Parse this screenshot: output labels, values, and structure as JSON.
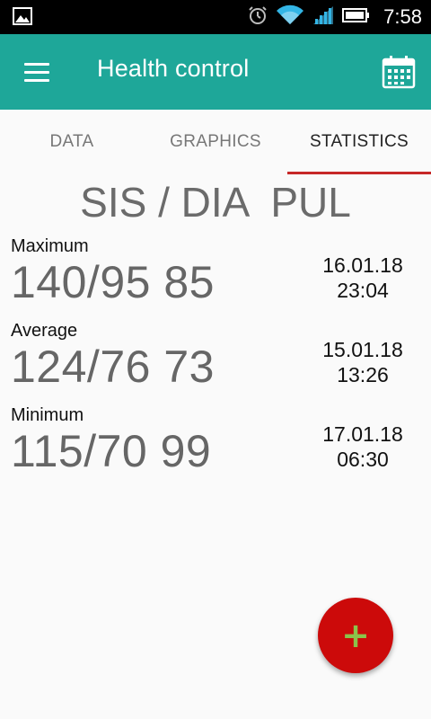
{
  "status_bar": {
    "time": "7:58",
    "icons": [
      "image-icon",
      "alarm-icon",
      "wifi-icon",
      "signal-icon",
      "battery-icon"
    ]
  },
  "app_bar": {
    "title": "Health control",
    "menu_icon": "menu-icon",
    "calendar_icon": "calendar-icon",
    "color": "#1ea799"
  },
  "tabs": [
    {
      "label": "DATA",
      "active": false
    },
    {
      "label": "GRAPHICS",
      "active": false
    },
    {
      "label": "STATISTICS",
      "active": true
    }
  ],
  "statistics": {
    "heading": "SIS / DIA  PUL",
    "rows": [
      {
        "label": "Maximum",
        "value": "140/95 85",
        "date": "16.01.18",
        "time": "23:04"
      },
      {
        "label": "Average",
        "value": "124/76 73",
        "date": "15.01.18",
        "time": "13:26"
      },
      {
        "label": "Minimum",
        "value": "115/70 99",
        "date": "17.01.18",
        "time": "06:30"
      }
    ]
  },
  "fab": {
    "symbol": "+",
    "color": "#cc0a0a"
  }
}
